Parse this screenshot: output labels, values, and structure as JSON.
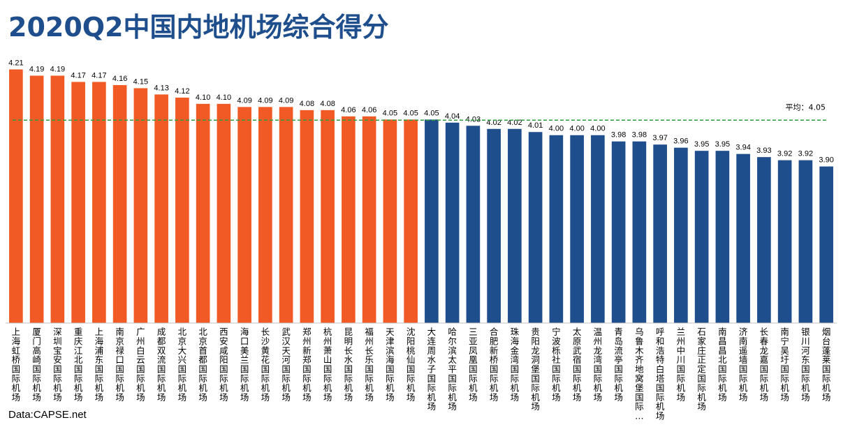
{
  "title": "2020Q2中国内地机场综合得分",
  "source": "Data:CAPSE.net",
  "chart_data": {
    "type": "bar",
    "title": "2020Q2中国内地机场综合得分",
    "xlabel": "",
    "ylabel": "",
    "ylim": [
      3.4,
      4.22
    ],
    "grid": false,
    "legend": "none",
    "categories": [
      "上海虹桥国际机场",
      "厦门高崎国际机场",
      "深圳宝安国际机场",
      "重庆江北国际机场",
      "上海浦东国际机场",
      "南京禄口国际机场",
      "广州白云国际机场",
      "成都双流国际机场",
      "北京大兴国际机场",
      "北京首都国际机场",
      "西安咸阳国际机场",
      "海口美兰国际机场",
      "长沙黄花国际机场",
      "武汉天河国际机场",
      "郑州新郑国际机场",
      "杭州萧山国际机场",
      "昆明长水国际机场",
      "福州长乐国际机场",
      "天津滨海国际机场",
      "沈阳桃仙国际机场",
      "大连周水子国际机场",
      "哈尔滨太平国际机场",
      "三亚凤凰国际机场",
      "合肥新桥国际机场",
      "珠海金湾国际机场",
      "贵阳龙洞堡国际机场",
      "宁波栎社国际机场",
      "太原武宿国际机场",
      "温州龙湾国际机场",
      "青岛流亭国际机场",
      "乌鲁木齐地窝堡国际…",
      "呼和浩特白塔国际机场",
      "兰州中川国际机场",
      "石家庄正定国际机场",
      "南昌昌北国际机场",
      "济南遥墙国际机场",
      "长春龙嘉国际机场",
      "南宁吴圩国际机场",
      "银川河东国际机场",
      "烟台蓬莱国际机场"
    ],
    "values": [
      4.21,
      4.19,
      4.19,
      4.17,
      4.17,
      4.16,
      4.15,
      4.13,
      4.12,
      4.1,
      4.1,
      4.09,
      4.09,
      4.09,
      4.08,
      4.08,
      4.06,
      4.06,
      4.05,
      4.05,
      4.05,
      4.04,
      4.03,
      4.02,
      4.02,
      4.01,
      4.0,
      4.0,
      4.0,
      3.98,
      3.98,
      3.97,
      3.96,
      3.95,
      3.95,
      3.94,
      3.93,
      3.92,
      3.92,
      3.9
    ],
    "value_labels": [
      "4.21",
      "4.19",
      "4.19",
      "4.17",
      "4.17",
      "4.16",
      "4.15",
      "4.13",
      "4.12",
      "4.10",
      "4.10",
      "4.09",
      "4.09",
      "4.09",
      "4.08",
      "4.08",
      "4.06",
      "4.06",
      "4.05",
      "4.05",
      "4.05",
      "4.04",
      "4.03",
      "4.02",
      "4.02",
      "4.01",
      "4.00",
      "4.00",
      "4.00",
      "3.98",
      "3.98",
      "3.97",
      "3.96",
      "3.95",
      "3.95",
      "3.94",
      "3.93",
      "3.92",
      "3.92",
      "3.90"
    ],
    "above_average_count": 20,
    "colors": {
      "above_average": "#f15a24",
      "below_average": "#1f4e8c",
      "average_line": "#2e9e3e",
      "axis": "#bfbfbf"
    },
    "average": {
      "value": 4.05,
      "label": "平均：4.05",
      "line_style": "dashed"
    }
  }
}
